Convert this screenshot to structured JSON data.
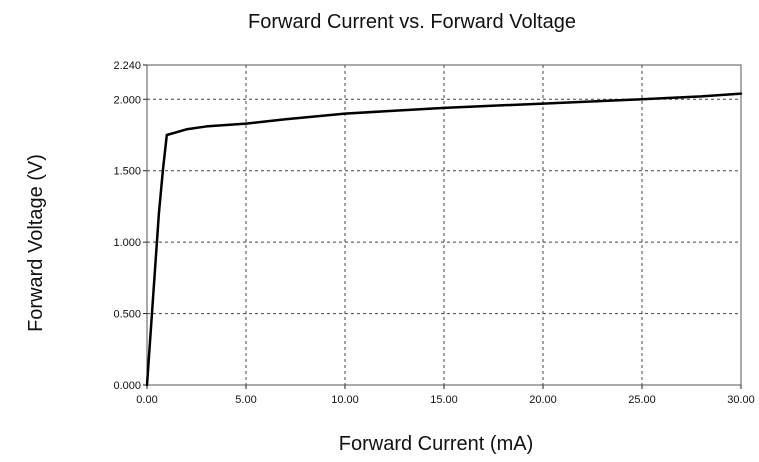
{
  "chart_data": {
    "type": "line",
    "title": "Forward Current vs. Forward Voltage",
    "xlabel": "Forward Current (mA)",
    "ylabel": "Forward Voltage (V)",
    "xlim": [
      0,
      30
    ],
    "ylim": [
      0,
      2.24
    ],
    "x_ticks": [
      0,
      5,
      10,
      15,
      20,
      25,
      30
    ],
    "x_tick_labels": [
      "0.00",
      "5.00",
      "10.00",
      "15.00",
      "20.00",
      "25.00",
      "30.00"
    ],
    "y_ticks": [
      0,
      0.5,
      1.0,
      1.5,
      2.0,
      2.24
    ],
    "y_tick_labels": [
      "0.000",
      "0.500",
      "1.000",
      "1.500",
      "2.000",
      "2.240"
    ],
    "grid": true,
    "series": [
      {
        "color": "#000000",
        "x": [
          0,
          0.05,
          0.1,
          0.2,
          0.4,
          0.6,
          0.8,
          1.0,
          1.5,
          2.0,
          3.0,
          4.0,
          5.0,
          7.0,
          10.0,
          15.0,
          20.0,
          25.0,
          28.0,
          30.0
        ],
        "y": [
          0,
          0.1,
          0.2,
          0.4,
          0.8,
          1.2,
          1.5,
          1.75,
          1.77,
          1.79,
          1.81,
          1.82,
          1.83,
          1.86,
          1.9,
          1.94,
          1.97,
          2.0,
          2.02,
          2.04
        ]
      }
    ]
  }
}
